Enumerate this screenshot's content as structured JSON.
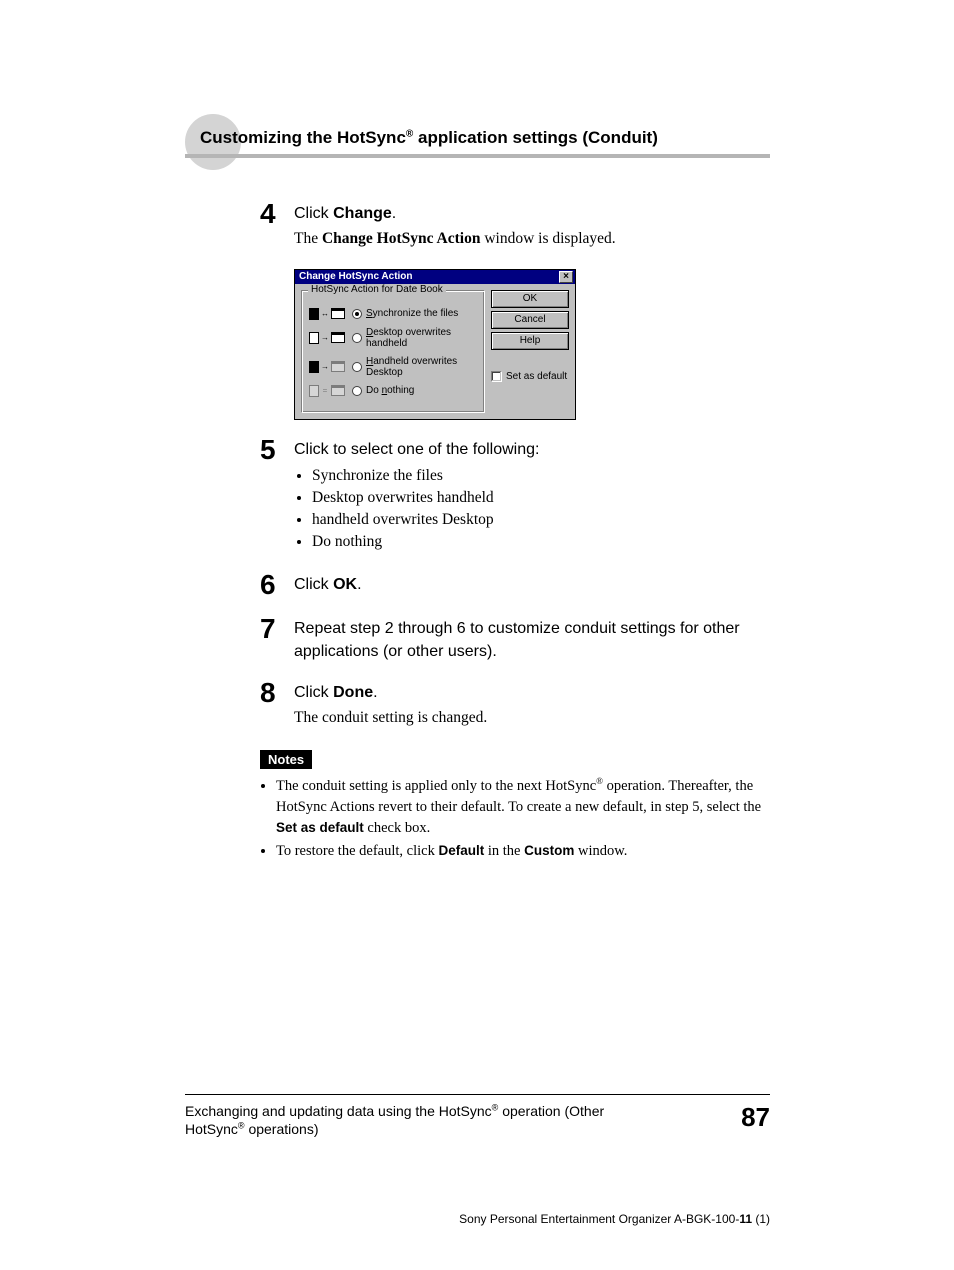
{
  "headline": {
    "pre": "Customizing the HotSync",
    "reg": "®",
    "post": " application settings (Conduit)",
    "circle_color": "#d4d4d4",
    "underline_color": "#b5b5b5",
    "font_family": "Arial",
    "font_size_pt": 13,
    "font_weight": "bold"
  },
  "steps": [
    {
      "num": "4",
      "lead_pre": "Click ",
      "lead_bold": "Change",
      "lead_post": ".",
      "sub_pre": "The ",
      "sub_bold": "Change HotSync Action",
      "sub_post": " window is displayed."
    },
    {
      "num": "5",
      "lead_pre": "Click to select one of the following:",
      "lead_bold": "",
      "lead_post": "",
      "options": [
        "Synchronize the files",
        "Desktop overwrites handheld",
        "handheld overwrites Desktop",
        "Do nothing"
      ]
    },
    {
      "num": "6",
      "lead_pre": "Click ",
      "lead_bold": "OK",
      "lead_post": "."
    },
    {
      "num": "7",
      "lead_pre": "Repeat step 2 through 6 to customize conduit settings for other applications (or other users).",
      "lead_bold": "",
      "lead_post": ""
    },
    {
      "num": "8",
      "lead_pre": "Click ",
      "lead_bold": "Done",
      "lead_post": ".",
      "sub_pre": "The conduit setting is changed.",
      "sub_bold": "",
      "sub_post": ""
    }
  ],
  "dialog": {
    "title": "Change HotSync Action",
    "group_title": "HotSync Action for Date Book",
    "buttons": {
      "ok": "OK",
      "cancel": "Cancel",
      "help": "Help"
    },
    "checkbox_label": "Set as default",
    "options": [
      {
        "label": "Synchronize the files",
        "underline_first": "S",
        "selected": true,
        "dim": false
      },
      {
        "label": "Desktop overwrites handheld",
        "underline_first": "D",
        "selected": false,
        "dim": false
      },
      {
        "label": "Handheld overwrites Desktop",
        "underline_first": "H",
        "selected": false,
        "dim": false
      },
      {
        "label": "Do nothing",
        "underline_first": "n",
        "selected": false,
        "dim": true
      }
    ],
    "colors": {
      "titlebar_bg": "#000080",
      "titlebar_fg": "#ffffff",
      "face": "#c0c0c0",
      "shadow": "#808080",
      "dark_shadow": "#404040",
      "highlight": "#ffffff"
    }
  },
  "notes": {
    "label": "Notes",
    "items": [
      {
        "parts": [
          {
            "t": "The conduit setting is applied only to the next HotSync"
          },
          {
            "sup": "®"
          },
          {
            "t": " operation. Thereafter, the HotSync Actions revert to their default. To create a new default, in step 5, select the "
          },
          {
            "b": "Set as default"
          },
          {
            "t": " check box."
          }
        ]
      },
      {
        "parts": [
          {
            "t": "To restore the default, click "
          },
          {
            "b": "Default"
          },
          {
            "t": " in the "
          },
          {
            "b": "Custom"
          },
          {
            "t": " window."
          }
        ]
      }
    ]
  },
  "footer": {
    "text_pre": "Exchanging and updating data using the HotSync",
    "reg1": "®",
    "text_mid": " operation (Other HotSync",
    "reg2": "®",
    "text_post": " operations)",
    "page_number": "87"
  },
  "bottom": {
    "brand": "Sony Personal Entertainment Organizer  A-BGK-100-",
    "bold": "11",
    "suffix": " (1)"
  },
  "page_bg": "#ffffff"
}
